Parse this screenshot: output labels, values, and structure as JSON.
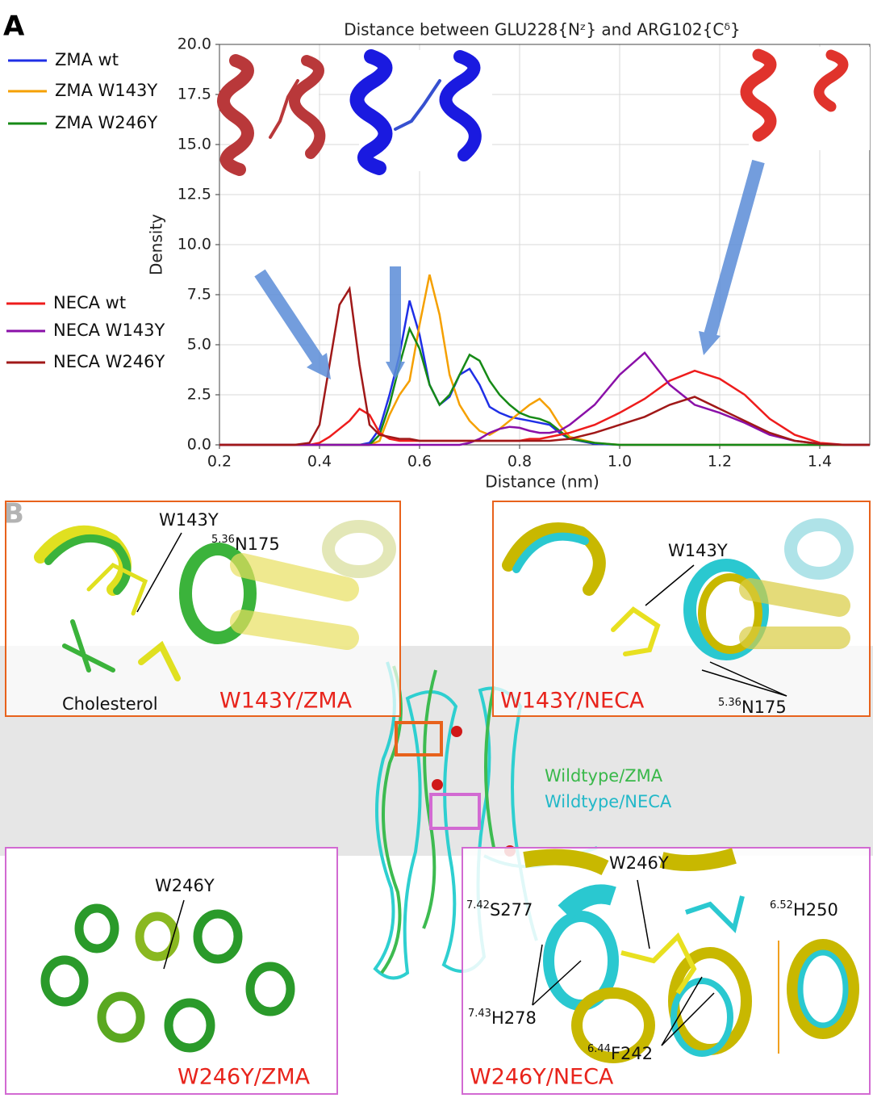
{
  "chart_data": {
    "type": "line",
    "panel_label": "A",
    "title": "Distance between GLU228{Nᶻ} and ARG102{Cᵟ}",
    "xlabel": "Distance (nm)",
    "ylabel": "Density",
    "xlim": [
      0.2,
      1.5
    ],
    "xticks": [
      0.2,
      0.4,
      0.6,
      0.8,
      {
        "value": 1,
        "label": "1.0"
      },
      1.2,
      1.4
    ],
    "ylim": [
      0,
      20
    ],
    "yticks": [
      {
        "value": 0,
        "label": "0.0"
      },
      2.5,
      {
        "value": 5,
        "label": "5.0"
      },
      7.5,
      {
        "value": 10,
        "label": "10.0"
      },
      12.5,
      {
        "value": 15,
        "label": "15.0"
      },
      17.5,
      {
        "value": 20,
        "label": "20.0"
      }
    ],
    "grid": true,
    "x": [
      0.2,
      0.3,
      0.35,
      0.38,
      0.4,
      0.42,
      0.44,
      0.46,
      0.48,
      0.5,
      0.52,
      0.54,
      0.56,
      0.58,
      0.6,
      0.62,
      0.64,
      0.66,
      0.68,
      0.7,
      0.72,
      0.74,
      0.76,
      0.78,
      0.8,
      0.82,
      0.84,
      0.86,
      0.88,
      0.9,
      0.95,
      1.0,
      1.05,
      1.1,
      1.15,
      1.2,
      1.25,
      1.3,
      1.35,
      1.4,
      1.45,
      1.5
    ],
    "series": [
      {
        "name": "ZMA wt",
        "color": "#1f2fe6",
        "values": [
          0,
          0,
          0,
          0,
          0,
          0,
          0,
          0,
          0,
          0.1,
          0.8,
          2.5,
          4.5,
          7.2,
          5.5,
          3,
          2,
          2.4,
          3.5,
          3.8,
          3,
          1.9,
          1.6,
          1.4,
          1.3,
          1.2,
          1.1,
          1,
          0.6,
          0.3,
          0.05,
          0,
          0,
          0,
          0,
          0,
          0,
          0,
          0,
          0,
          0,
          0
        ]
      },
      {
        "name": "ZMA W143Y",
        "color": "#f5a000",
        "values": [
          0,
          0,
          0,
          0,
          0,
          0,
          0,
          0,
          0,
          0,
          0.2,
          1.5,
          2.5,
          3.2,
          6,
          8.5,
          6.5,
          3.5,
          2,
          1.2,
          0.7,
          0.5,
          0.8,
          1.2,
          1.6,
          2,
          2.3,
          1.8,
          1,
          0.4,
          0.1,
          0,
          0,
          0,
          0,
          0,
          0,
          0,
          0,
          0,
          0,
          0
        ]
      },
      {
        "name": "ZMA W246Y",
        "color": "#168a16",
        "values": [
          0,
          0,
          0,
          0,
          0,
          0,
          0,
          0,
          0,
          0,
          0.5,
          2,
          4,
          5.8,
          4.8,
          3,
          2,
          2.5,
          3.5,
          4.5,
          4.2,
          3.2,
          2.5,
          2,
          1.6,
          1.4,
          1.3,
          1.1,
          0.7,
          0.3,
          0.1,
          0,
          0,
          0,
          0,
          0,
          0,
          0,
          0,
          0,
          0,
          0
        ]
      },
      {
        "name": "NECA wt",
        "color": "#ee1c1c",
        "values": [
          0,
          0,
          0,
          0,
          0.1,
          0.4,
          0.8,
          1.2,
          1.8,
          1.5,
          0.6,
          0.3,
          0.2,
          0.2,
          0.2,
          0.2,
          0.2,
          0.2,
          0.2,
          0.2,
          0.2,
          0.2,
          0.2,
          0.2,
          0.2,
          0.3,
          0.3,
          0.4,
          0.5,
          0.6,
          1,
          1.6,
          2.3,
          3.2,
          3.7,
          3.3,
          2.5,
          1.3,
          0.5,
          0.1,
          0,
          0
        ]
      },
      {
        "name": "NECA W143Y",
        "color": "#8a10a8",
        "values": [
          0,
          0,
          0,
          0,
          0,
          0,
          0,
          0,
          0,
          0,
          0,
          0,
          0,
          0,
          0,
          0,
          0,
          0,
          0,
          0.1,
          0.3,
          0.6,
          0.8,
          0.9,
          0.85,
          0.7,
          0.6,
          0.6,
          0.7,
          1,
          2,
          3.5,
          4.6,
          3,
          2,
          1.6,
          1.1,
          0.5,
          0.2,
          0.05,
          0,
          0
        ]
      },
      {
        "name": "NECA W246Y",
        "color": "#a01818",
        "values": [
          0,
          0,
          0,
          0.1,
          1,
          4,
          7,
          7.8,
          4,
          1,
          0.5,
          0.4,
          0.3,
          0.3,
          0.2,
          0.2,
          0.2,
          0.2,
          0.2,
          0.2,
          0.2,
          0.2,
          0.2,
          0.2,
          0.2,
          0.2,
          0.2,
          0.2,
          0.25,
          0.3,
          0.6,
          1,
          1.4,
          2,
          2.4,
          1.8,
          1.2,
          0.6,
          0.2,
          0.05,
          0,
          0
        ]
      }
    ]
  },
  "panel_b": {
    "label": "B",
    "top_left": {
      "title": "W143Y/ZMA",
      "mutation": "W143Y",
      "residue": {
        "sup": "5.36",
        "text": "N175"
      },
      "ligand": "Cholesterol"
    },
    "top_right": {
      "title": "W143Y/NECA",
      "mutation": "W143Y",
      "residue": {
        "sup": "5.36",
        "text": "N175"
      }
    },
    "center": {
      "legend": [
        "Wildtype/ZMA",
        "Wildtype/NECA"
      ]
    },
    "bottom_left": {
      "title": "W246Y/ZMA",
      "mutation": "W246Y"
    },
    "bottom_right": {
      "title": "W246Y/NECA",
      "mutation": "W246Y",
      "residues": [
        {
          "sup": "7.42",
          "text": "S277"
        },
        {
          "sup": "6.52",
          "text": "H250"
        },
        {
          "sup": "7.43",
          "text": "H278"
        },
        {
          "sup": "6.44",
          "text": "F242"
        }
      ]
    }
  }
}
